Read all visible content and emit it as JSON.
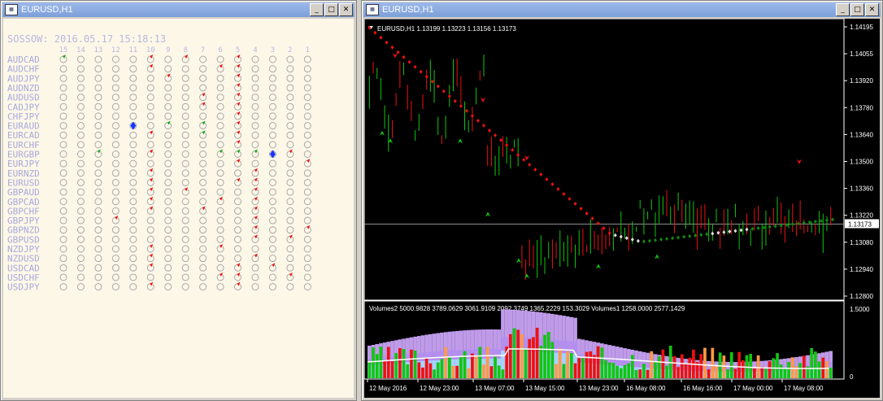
{
  "left_window": {
    "title": "EURUSD,H1",
    "header": "SOSSOW: 2016.05.17 15:18:13",
    "columns": [
      "15",
      "14",
      "13",
      "12",
      "11",
      "10",
      "9",
      "8",
      "7",
      "6",
      "5",
      "4",
      "3",
      "2",
      "1"
    ],
    "pairs": [
      "AUDCAD",
      "AUDCHF",
      "AUDJPY",
      "AUDNZD",
      "AUDUSD",
      "CADJPY",
      "CHFJPY",
      "EURAUD",
      "EURCAD",
      "EURCHF",
      "EURGBP",
      "EURJPY",
      "EURNZD",
      "EURUSD",
      "GBPAUD",
      "GBPCAD",
      "GBPCHF",
      "GBPJPY",
      "GBPNZD",
      "GBPUSD",
      "NZDJPY",
      "NZDUSD",
      "USDCAD",
      "USDCHF",
      "USDJPY"
    ],
    "marks": [
      [
        0,
        0,
        "g"
      ],
      [
        0,
        5,
        "r"
      ],
      [
        0,
        7,
        "r"
      ],
      [
        0,
        10,
        "r"
      ],
      [
        1,
        5,
        "r"
      ],
      [
        1,
        9,
        "r"
      ],
      [
        1,
        10,
        "r"
      ],
      [
        2,
        6,
        "r"
      ],
      [
        2,
        10,
        "r"
      ],
      [
        3,
        10,
        "r"
      ],
      [
        4,
        8,
        "r"
      ],
      [
        4,
        10,
        "r"
      ],
      [
        5,
        8,
        "r"
      ],
      [
        5,
        10,
        "r"
      ],
      [
        6,
        10,
        "r"
      ],
      [
        7,
        4,
        "blue"
      ],
      [
        7,
        6,
        "g"
      ],
      [
        7,
        8,
        "g"
      ],
      [
        7,
        10,
        "r"
      ],
      [
        8,
        5,
        "r"
      ],
      [
        8,
        8,
        "g"
      ],
      [
        8,
        10,
        "r"
      ],
      [
        9,
        10,
        "r"
      ],
      [
        10,
        2,
        "g"
      ],
      [
        10,
        5,
        "r"
      ],
      [
        10,
        9,
        "g"
      ],
      [
        10,
        10,
        "g"
      ],
      [
        10,
        11,
        "g"
      ],
      [
        10,
        12,
        "blue"
      ],
      [
        10,
        13,
        "r"
      ],
      [
        11,
        10,
        "r"
      ],
      [
        11,
        14,
        "r"
      ],
      [
        12,
        5,
        "r"
      ],
      [
        12,
        11,
        "r"
      ],
      [
        13,
        5,
        "r"
      ],
      [
        13,
        10,
        "r"
      ],
      [
        13,
        11,
        "r"
      ],
      [
        14,
        5,
        "r"
      ],
      [
        14,
        7,
        "r"
      ],
      [
        14,
        11,
        "r"
      ],
      [
        15,
        5,
        "r"
      ],
      [
        15,
        9,
        "r"
      ],
      [
        15,
        11,
        "r"
      ],
      [
        16,
        5,
        "r"
      ],
      [
        16,
        8,
        "r"
      ],
      [
        16,
        11,
        "r"
      ],
      [
        17,
        3,
        "r"
      ],
      [
        17,
        11,
        "r"
      ],
      [
        18,
        11,
        "r"
      ],
      [
        18,
        14,
        "r"
      ],
      [
        19,
        11,
        "r"
      ],
      [
        19,
        13,
        "r"
      ],
      [
        20,
        5,
        "r"
      ],
      [
        20,
        9,
        "r"
      ],
      [
        21,
        5,
        "r"
      ],
      [
        21,
        11,
        "r"
      ],
      [
        22,
        5,
        "r"
      ],
      [
        22,
        10,
        "r"
      ],
      [
        22,
        12,
        "r"
      ],
      [
        23,
        9,
        "r"
      ],
      [
        23,
        10,
        "r"
      ],
      [
        23,
        13,
        "r"
      ],
      [
        24,
        5,
        "r"
      ],
      [
        24,
        10,
        "r"
      ]
    ]
  },
  "right_window": {
    "title": "EURUSD,H1",
    "info": "EURUSD,H1  1.13199 1.13223 1.13156 1.13173",
    "price_labels": [
      "1.14195",
      "1.14055",
      "1.13920",
      "1.13780",
      "1.13640",
      "1.13500",
      "1.13360",
      "1.13220",
      "1.13080",
      "1.12940",
      "1.12800"
    ],
    "current_price": "1.13173",
    "volume_info": "Volumes2 5000.9828 3789.0629 3061.9109 2092.3749 1365.2229 153.3029  Volumes1 1258.0000 2577.1429",
    "volume_labels": [
      "1.5000",
      "0"
    ],
    "time_labels": [
      "12 May 2016",
      "12 May 23:00",
      "13 May 07:00",
      "13 May 15:00",
      "13 May 23:00",
      "16 May 08:00",
      "16 May 16:00",
      "17 May 00:00",
      "17 May 08:00"
    ]
  },
  "colors": {
    "up": "#11c511",
    "down": "#ee1010",
    "trail": "#ee1010",
    "dots_green": "#118811",
    "purple": "#c9a3f5",
    "cyan": "#a4d4ff",
    "grid_bg": "#000000"
  }
}
